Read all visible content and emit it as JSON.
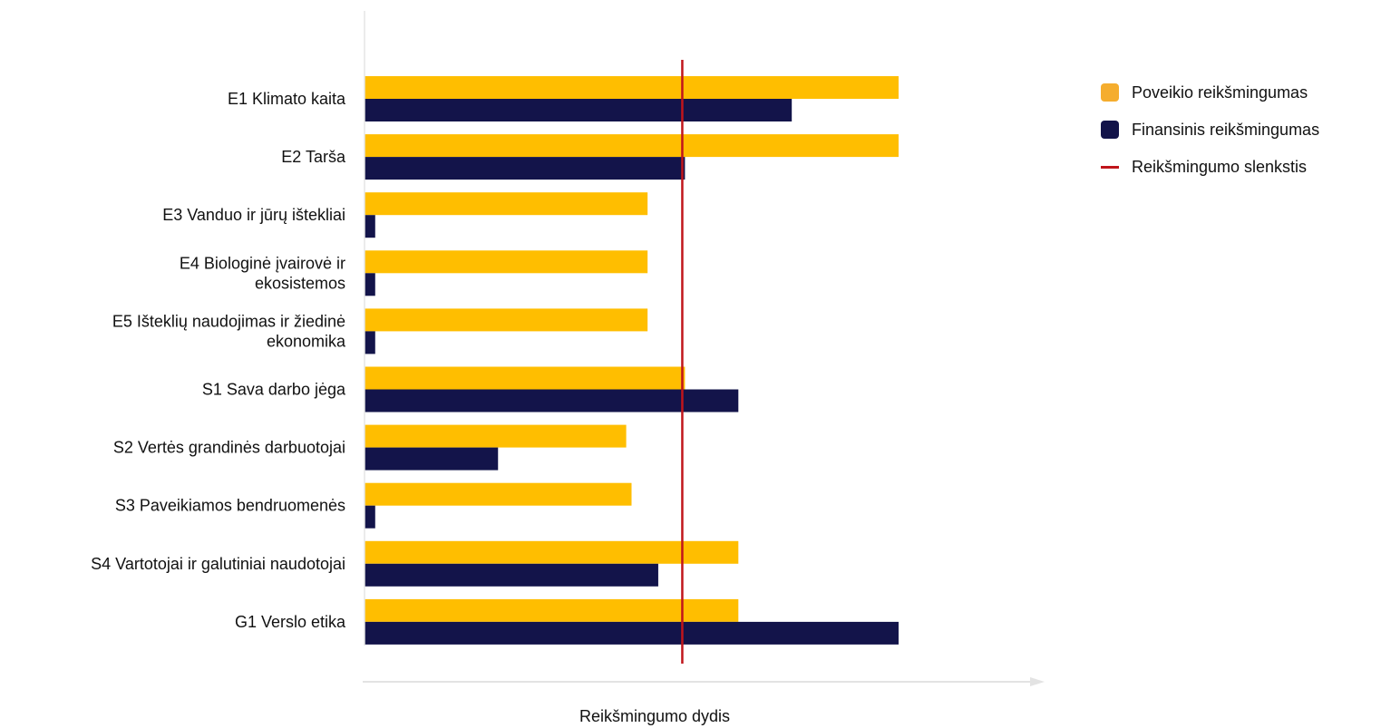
{
  "chart_data": {
    "type": "bar",
    "orientation": "horizontal",
    "categories": [
      [
        "E1 Klimato kaita"
      ],
      [
        "E2 Tarša"
      ],
      [
        "E3 Vanduo ir jūrų ištekliai"
      ],
      [
        "E4 Biologinė įvairovė ir",
        "ekosistemos"
      ],
      [
        "E5 Išteklių naudojimas ir žiedinė",
        "ekonomika"
      ],
      [
        "S1 Sava darbo jėga"
      ],
      [
        "S2 Vertės grandinės darbuotojai"
      ],
      [
        "S3 Paveikiamos bendruomenės"
      ],
      [
        "S4 Vartotojai ir galutiniai naudotojai"
      ],
      [
        "G1 Verslo etika"
      ]
    ],
    "series": [
      {
        "name": "Poveikio reikšmingumas",
        "color": "#FFBE00",
        "values": [
          10,
          10,
          5.3,
          5.3,
          5.3,
          6,
          4.9,
          5,
          7,
          7
        ]
      },
      {
        "name": "Finansinis reikšmingumas",
        "color": "#13144A",
        "values": [
          8,
          6,
          0.2,
          0.2,
          0.2,
          7,
          2.5,
          0.2,
          5.5,
          10
        ]
      }
    ],
    "threshold": {
      "name": "Reikšmingumo slenkstis",
      "value": 5.95,
      "color": "#C0151B"
    },
    "xlabel": "Reikšmingumo dydis",
    "ylabel": "",
    "xlim": [
      0,
      12.7
    ],
    "grid": false,
    "legend_position": "top-right"
  }
}
